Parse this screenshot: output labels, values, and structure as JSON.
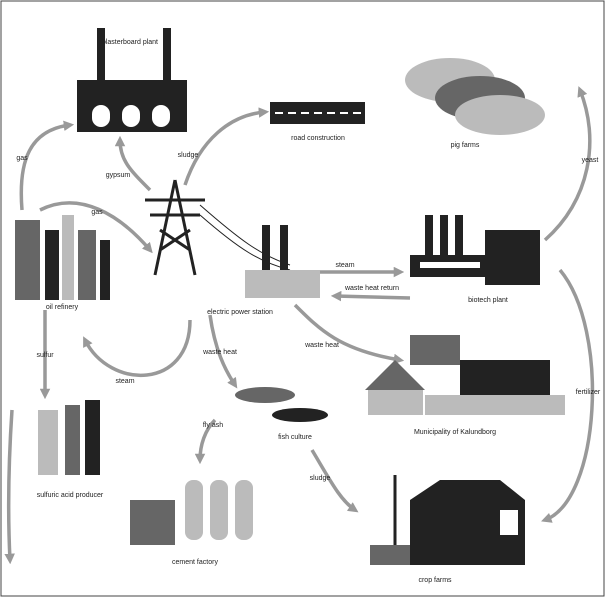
{
  "nodes": [
    {
      "label": "plasterboard plant"
    },
    {
      "label": "road construction"
    },
    {
      "label": "pig farms"
    },
    {
      "label": "oil refinery"
    },
    {
      "label": "electric power station"
    },
    {
      "label": "biotech plant"
    },
    {
      "label": "Municipality of Kalundborg"
    },
    {
      "label": "fish culture"
    },
    {
      "label": "sulfuric acid producer"
    },
    {
      "label": "cement factory"
    },
    {
      "label": "crop farms"
    }
  ],
  "edges": [
    {
      "label": "gas"
    },
    {
      "label": "gypsum"
    },
    {
      "label": "sludge"
    },
    {
      "label": "gas"
    },
    {
      "label": "steam"
    },
    {
      "label": "waste heat return"
    },
    {
      "label": "waste heat"
    },
    {
      "label": "sulfur"
    },
    {
      "label": "steam"
    },
    {
      "label": "waste heat"
    },
    {
      "label": "fly ash"
    },
    {
      "label": "sludge"
    },
    {
      "label": "yeast"
    },
    {
      "label": "fertilizer"
    }
  ]
}
